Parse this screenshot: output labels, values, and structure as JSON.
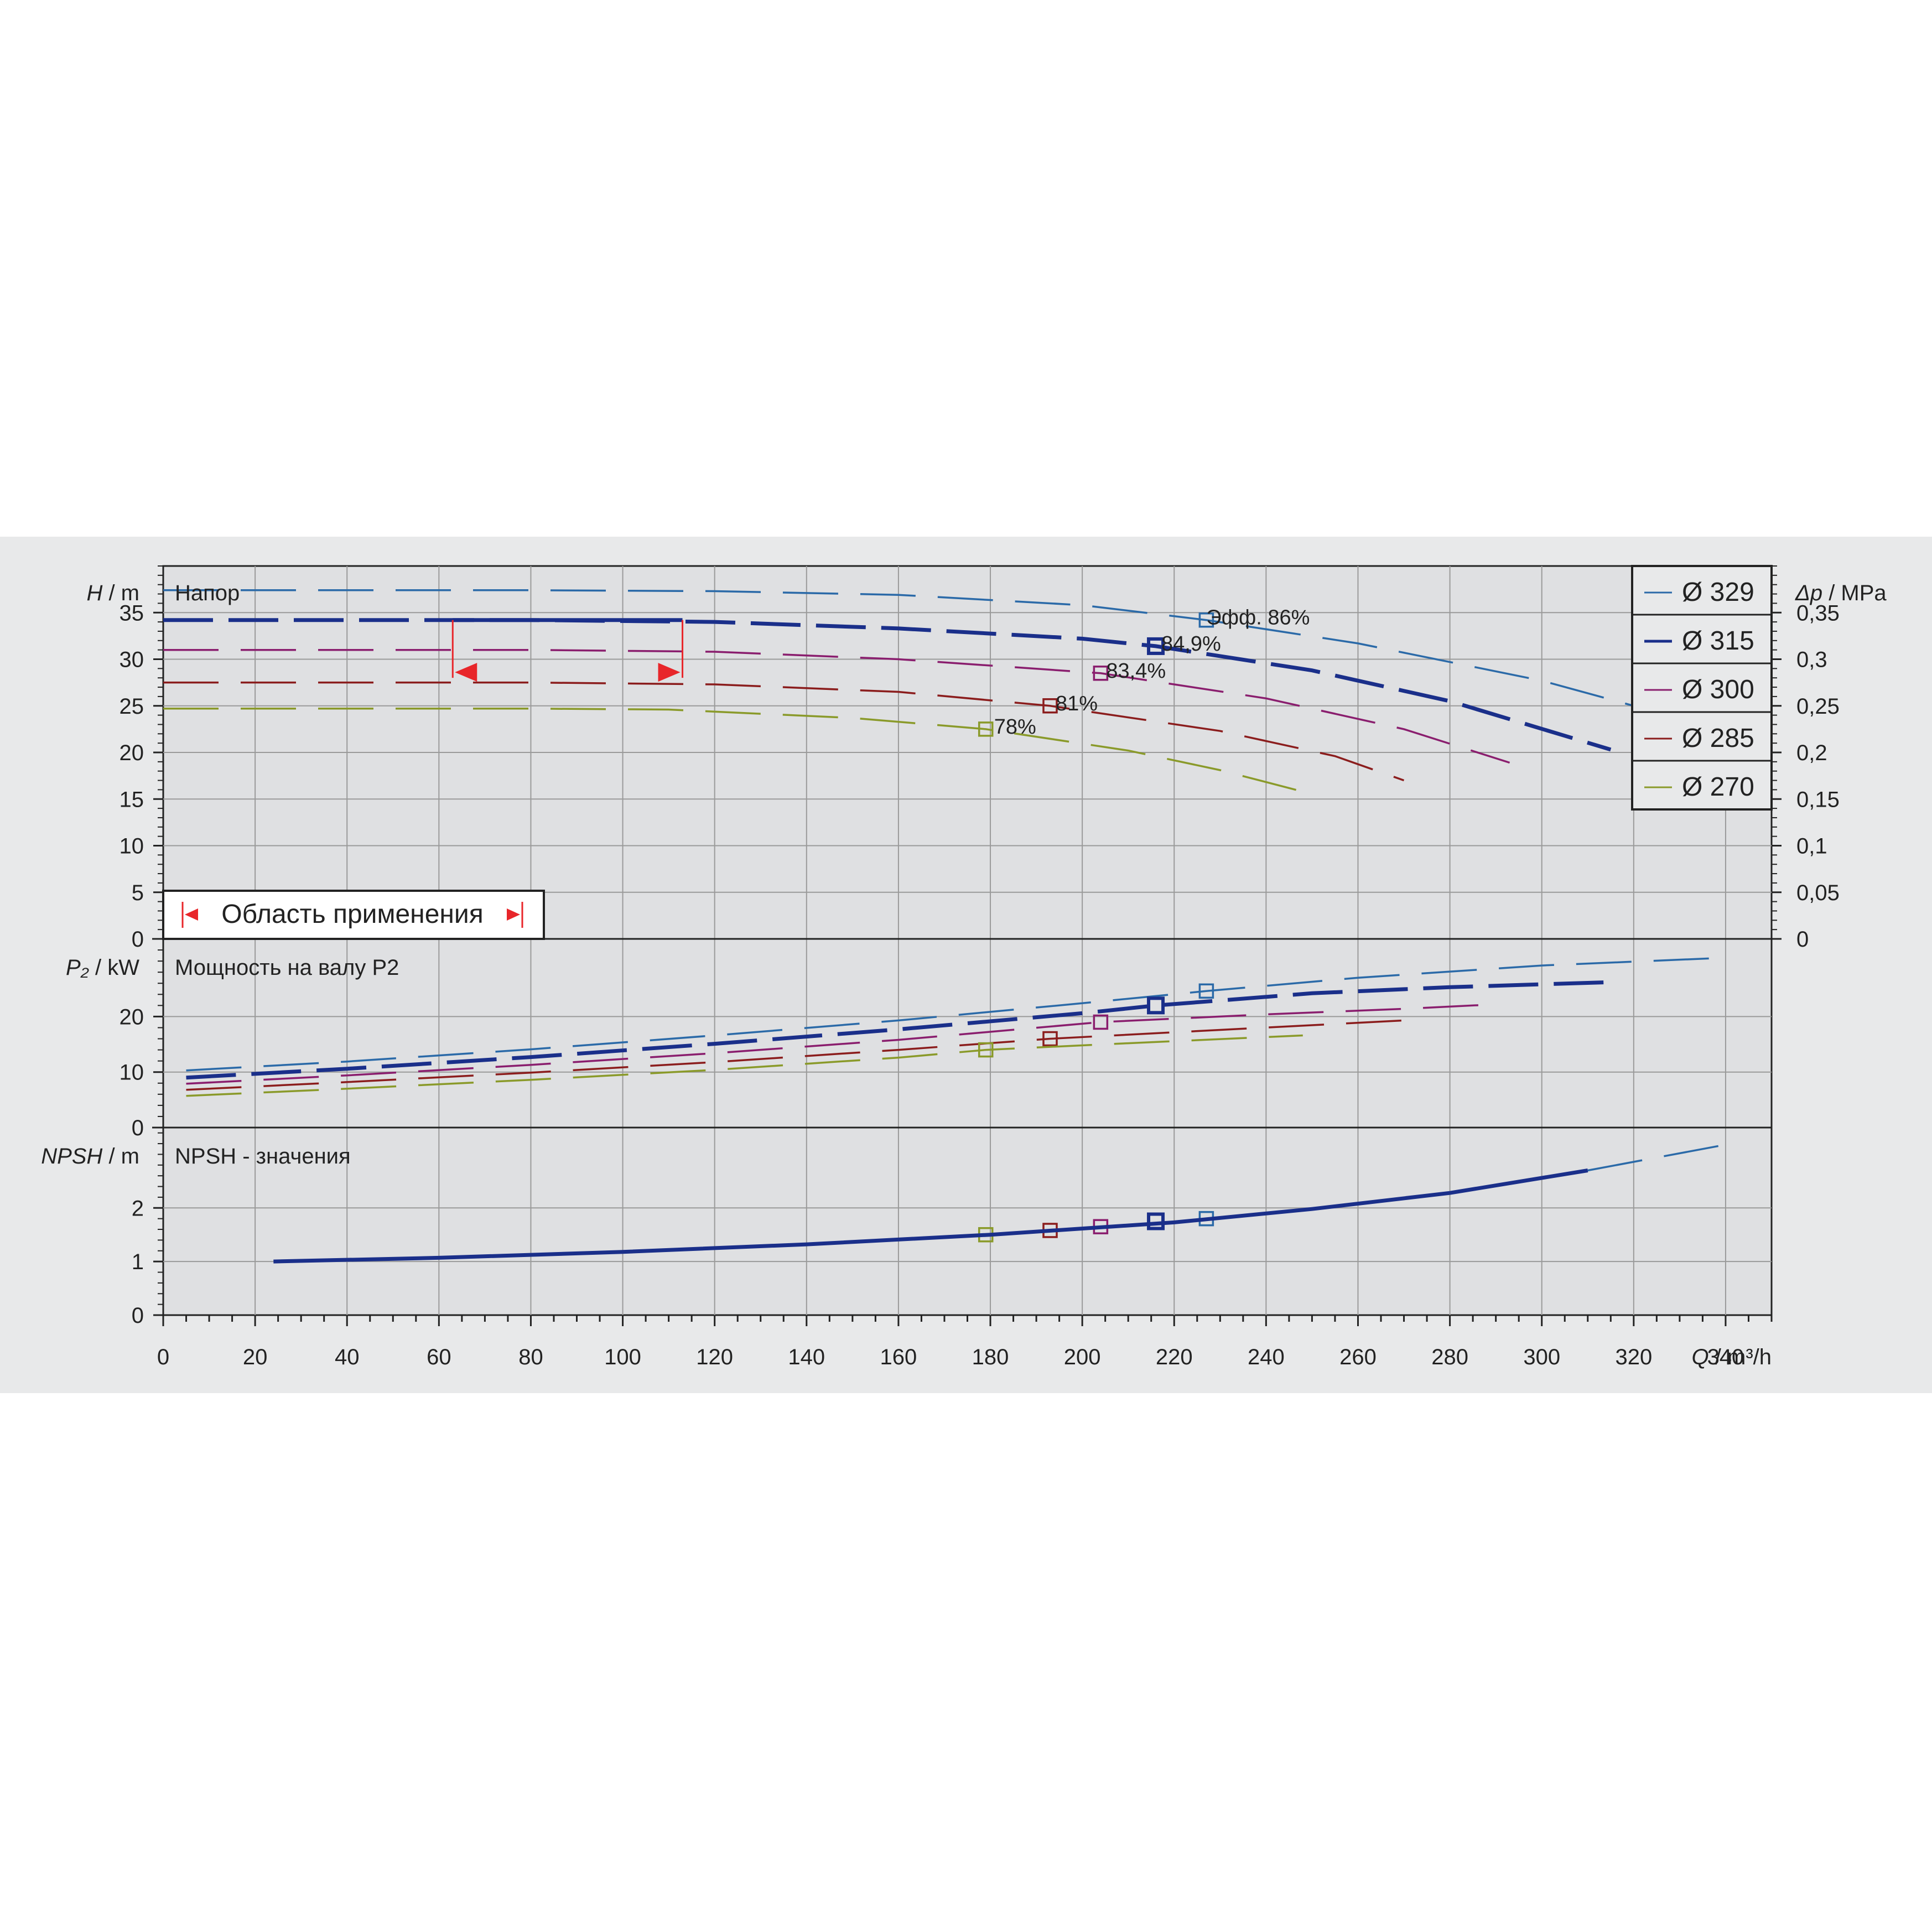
{
  "chart_data": {
    "type": "line",
    "x_axis": {
      "label_symbol": "Q",
      "label_unit": "m³/h",
      "range": [
        0,
        350
      ],
      "ticks": [
        0,
        20,
        40,
        60,
        80,
        100,
        120,
        140,
        160,
        180,
        200,
        220,
        240,
        260,
        280,
        300,
        320,
        340
      ]
    },
    "panels": {
      "head": {
        "title": "Напор",
        "ylabel_symbol": "H",
        "ylabel_unit": "m",
        "ylim": [
          0,
          40
        ],
        "yticks": [
          0,
          5,
          10,
          15,
          20,
          25,
          30,
          35
        ],
        "right_axis": {
          "label_symbol": "Δp",
          "label_unit": "MPa",
          "ticks": [
            "0",
            "0,05",
            "0,1",
            "0,15",
            "0,2",
            "0,25",
            "0,3",
            "0,35"
          ]
        },
        "application_range_label": "Область применения",
        "application_range_q": [
          63,
          113
        ],
        "application_range_h": 34.2
      },
      "power": {
        "title": "Мощность на валу P2",
        "ylabel_symbol": "P₂",
        "ylabel_unit": "kW",
        "ylim": [
          0,
          34
        ],
        "yticks": [
          0,
          10,
          20
        ]
      },
      "npsh": {
        "title": "NPSH - значения",
        "ylabel_symbol": "NPSH",
        "ylabel_unit": "m",
        "ylim": [
          0,
          3.5
        ],
        "yticks": [
          0,
          1,
          2
        ]
      }
    },
    "legend_placement": "top-right",
    "series": [
      {
        "name": "Ø 329",
        "color": "#2b6aa8",
        "efficiency_label": "Эфф. 86%",
        "bep": {
          "q": 227,
          "h": 34.2,
          "p": 24.6,
          "npsh": 1.8
        },
        "head": [
          [
            0,
            37.4
          ],
          [
            40,
            37.4
          ],
          [
            80,
            37.4
          ],
          [
            120,
            37.3
          ],
          [
            160,
            36.9
          ],
          [
            200,
            35.8
          ],
          [
            227,
            34.2
          ],
          [
            260,
            31.7
          ],
          [
            300,
            27.7
          ],
          [
            340,
            22.3
          ]
        ],
        "power": [
          [
            5,
            10.3
          ],
          [
            40,
            11.9
          ],
          [
            80,
            14.1
          ],
          [
            120,
            16.6
          ],
          [
            160,
            19.3
          ],
          [
            200,
            22.4
          ],
          [
            227,
            24.6
          ],
          [
            260,
            27.0
          ],
          [
            300,
            29.2
          ],
          [
            340,
            30.6
          ]
        ]
      },
      {
        "name": "Ø 315",
        "color": "#1a2f8a",
        "efficiency_label": "84,9%",
        "bep": {
          "q": 216,
          "h": 31.4,
          "p": 22.0,
          "npsh": 1.75
        },
        "head": [
          [
            0,
            34.2
          ],
          [
            40,
            34.2
          ],
          [
            80,
            34.2
          ],
          [
            120,
            34.0
          ],
          [
            160,
            33.3
          ],
          [
            200,
            32.2
          ],
          [
            216,
            31.4
          ],
          [
            250,
            28.8
          ],
          [
            280,
            25.5
          ],
          [
            315,
            20.3
          ]
        ],
        "power": [
          [
            5,
            9.0
          ],
          [
            40,
            10.6
          ],
          [
            80,
            12.7
          ],
          [
            120,
            15.1
          ],
          [
            160,
            17.7
          ],
          [
            200,
            20.6
          ],
          [
            216,
            22.0
          ],
          [
            250,
            24.2
          ],
          [
            280,
            25.3
          ],
          [
            315,
            26.2
          ]
        ]
      },
      {
        "name": "Ø 300",
        "color": "#8a1e6e",
        "efficiency_label": "83,4%",
        "bep": {
          "q": 204,
          "h": 28.5,
          "p": 19.0,
          "npsh": 1.65
        },
        "head": [
          [
            0,
            31.0
          ],
          [
            40,
            31.0
          ],
          [
            80,
            31.0
          ],
          [
            120,
            30.8
          ],
          [
            160,
            30.0
          ],
          [
            204,
            28.5
          ],
          [
            240,
            25.8
          ],
          [
            270,
            22.5
          ],
          [
            293,
            18.9
          ]
        ],
        "power": [
          [
            5,
            7.9
          ],
          [
            40,
            9.4
          ],
          [
            80,
            11.3
          ],
          [
            120,
            13.4
          ],
          [
            160,
            15.8
          ],
          [
            204,
            19.0
          ],
          [
            240,
            20.4
          ],
          [
            270,
            21.4
          ],
          [
            290,
            22.2
          ]
        ]
      },
      {
        "name": "Ø 285",
        "color": "#8b1d1d",
        "efficiency_label": "81%",
        "bep": {
          "q": 193,
          "h": 25.0,
          "p": 16.0,
          "npsh": 1.58
        },
        "head": [
          [
            0,
            27.5
          ],
          [
            40,
            27.5
          ],
          [
            80,
            27.5
          ],
          [
            120,
            27.3
          ],
          [
            160,
            26.5
          ],
          [
            193,
            25.0
          ],
          [
            230,
            22.3
          ],
          [
            255,
            19.6
          ],
          [
            270,
            17.0
          ]
        ],
        "power": [
          [
            5,
            6.8
          ],
          [
            40,
            8.2
          ],
          [
            80,
            9.9
          ],
          [
            120,
            11.8
          ],
          [
            160,
            14.0
          ],
          [
            193,
            16.0
          ],
          [
            230,
            17.6
          ],
          [
            270,
            19.3
          ]
        ]
      },
      {
        "name": "Ø 270",
        "color": "#8a9a2a",
        "efficiency_label": "78%",
        "bep": {
          "q": 179,
          "h": 22.5,
          "p": 14.0,
          "npsh": 1.5
        },
        "head": [
          [
            0,
            24.7
          ],
          [
            40,
            24.7
          ],
          [
            80,
            24.7
          ],
          [
            110,
            24.6
          ],
          [
            150,
            23.7
          ],
          [
            179,
            22.5
          ],
          [
            210,
            20.2
          ],
          [
            230,
            18.1
          ],
          [
            248,
            15.8
          ]
        ],
        "power": [
          [
            5,
            5.7
          ],
          [
            40,
            7.0
          ],
          [
            80,
            8.6
          ],
          [
            120,
            10.4
          ],
          [
            160,
            12.6
          ],
          [
            179,
            14.0
          ],
          [
            210,
            15.2
          ],
          [
            248,
            16.6
          ]
        ]
      }
    ],
    "npsh_curve": [
      [
        24,
        1.0
      ],
      [
        60,
        1.07
      ],
      [
        100,
        1.18
      ],
      [
        140,
        1.32
      ],
      [
        180,
        1.5
      ],
      [
        220,
        1.73
      ],
      [
        250,
        1.98
      ],
      [
        280,
        2.28
      ],
      [
        310,
        2.7
      ],
      [
        340,
        3.18
      ]
    ]
  }
}
